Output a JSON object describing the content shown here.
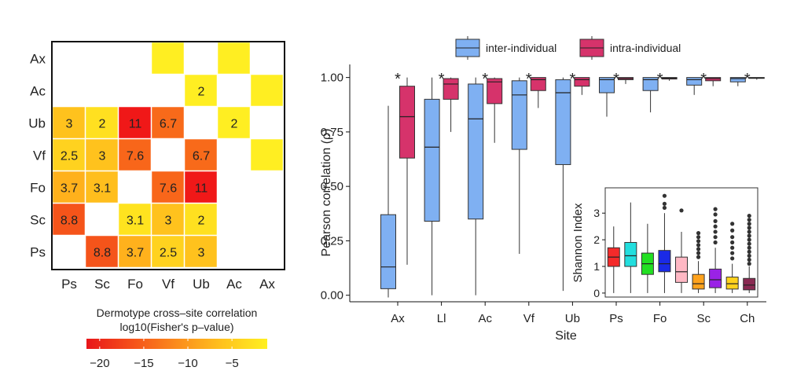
{
  "chart_data": [
    {
      "type": "heatmap",
      "rows": [
        "Ax",
        "Ac",
        "Ub",
        "Vf",
        "Fo",
        "Sc",
        "Ps"
      ],
      "columns": [
        "Ps",
        "Sc",
        "Fo",
        "Vf",
        "Ub",
        "Ac",
        "Ax"
      ],
      "cells": [
        {
          "row": "Ax",
          "col": "Vf",
          "value": null,
          "color": "#ffee22"
        },
        {
          "row": "Ax",
          "col": "Ac",
          "value": null,
          "color": "#ffee22"
        },
        {
          "row": "Ac",
          "col": "Ub",
          "value": "2",
          "color": "#ffee22"
        },
        {
          "row": "Ac",
          "col": "Ax",
          "value": null,
          "color": "#ffee22"
        },
        {
          "row": "Ub",
          "col": "Ps",
          "value": "3",
          "color": "#ffc21d"
        },
        {
          "row": "Ub",
          "col": "Sc",
          "value": "2",
          "color": "#ffe020"
        },
        {
          "row": "Ub",
          "col": "Fo",
          "value": "11",
          "color": "#f01818"
        },
        {
          "row": "Ub",
          "col": "Vf",
          "value": "6.7",
          "color": "#f86a1a"
        },
        {
          "row": "Ub",
          "col": "Ac",
          "value": "2",
          "color": "#ffee22"
        },
        {
          "row": "Vf",
          "col": "Ps",
          "value": "2.5",
          "color": "#ffd21f"
        },
        {
          "row": "Vf",
          "col": "Sc",
          "value": "3",
          "color": "#ffc21d"
        },
        {
          "row": "Vf",
          "col": "Fo",
          "value": "7.6",
          "color": "#f8661a"
        },
        {
          "row": "Vf",
          "col": "Ub",
          "value": "6.7",
          "color": "#f86a1a"
        },
        {
          "row": "Vf",
          "col": "Ax",
          "value": null,
          "color": "#ffee22"
        },
        {
          "row": "Fo",
          "col": "Ps",
          "value": "3.7",
          "color": "#ffb11c"
        },
        {
          "row": "Fo",
          "col": "Sc",
          "value": "3.1",
          "color": "#ffbe1d"
        },
        {
          "row": "Fo",
          "col": "Vf",
          "value": "7.6",
          "color": "#f8661a"
        },
        {
          "row": "Fo",
          "col": "Ub",
          "value": "11",
          "color": "#f01818"
        },
        {
          "row": "Sc",
          "col": "Ps",
          "value": "8.8",
          "color": "#f5541a"
        },
        {
          "row": "Sc",
          "col": "Fo",
          "value": "3.1",
          "color": "#ffe31f"
        },
        {
          "row": "Sc",
          "col": "Vf",
          "value": "3",
          "color": "#ffc21d"
        },
        {
          "row": "Sc",
          "col": "Ub",
          "value": "2",
          "color": "#ffe020"
        },
        {
          "row": "Ps",
          "col": "Sc",
          "value": "8.8",
          "color": "#f5541a"
        },
        {
          "row": "Ps",
          "col": "Fo",
          "value": "3.7",
          "color": "#ffb11c"
        },
        {
          "row": "Ps",
          "col": "Vf",
          "value": "2.5",
          "color": "#ffd21f"
        },
        {
          "row": "Ps",
          "col": "Ub",
          "value": "3",
          "color": "#ffc21d"
        }
      ],
      "colorbar": {
        "title_line1": "Dermotype cross–site correlation",
        "title_line2": "log10(Fisher's p–value)",
        "ticks": [
          "−20",
          "−15",
          "−10",
          "−5"
        ],
        "tick_values": [
          -20,
          -15,
          -10,
          -5
        ],
        "range": [
          -21.5,
          -1
        ],
        "colors": [
          "#e8161a",
          "#f5501a",
          "#fb8c1c",
          "#ffc21e",
          "#fff021"
        ]
      }
    },
    {
      "type": "box",
      "ylabel": "Pearson correlation (ρ)",
      "xlabel": "Site",
      "ylim": [
        -0.03,
        1.06
      ],
      "yticks": [
        "0.00",
        "0.25",
        "0.50",
        "0.75",
        "1.00"
      ],
      "ytick_values": [
        0,
        0.25,
        0.5,
        0.75,
        1.0
      ],
      "legend": {
        "position": "top",
        "entries": [
          {
            "name": "inter-individual",
            "color": "#7fb0f2"
          },
          {
            "name": "intra-individual",
            "color": "#d6336b"
          }
        ]
      },
      "significance_marker": "*",
      "categories": [
        "Ax",
        "Ll",
        "Ac",
        "Vf",
        "Ub",
        "Ps",
        "Fo",
        "Sc",
        "Ch"
      ],
      "series": [
        {
          "name": "inter-individual",
          "color": "#7fb0f2",
          "boxes": [
            {
              "min": -0.01,
              "q1": 0.03,
              "median": 0.13,
              "q3": 0.37,
              "max": 0.87
            },
            {
              "min": 0.0,
              "q1": 0.34,
              "median": 0.68,
              "q3": 0.9,
              "max": 1.0
            },
            {
              "min": 0.0,
              "q1": 0.35,
              "median": 0.81,
              "q3": 0.97,
              "max": 1.0
            },
            {
              "min": 0.19,
              "q1": 0.67,
              "median": 0.92,
              "q3": 0.985,
              "max": 1.0
            },
            {
              "min": 0.02,
              "q1": 0.6,
              "median": 0.93,
              "q3": 0.99,
              "max": 1.0
            },
            {
              "min": 0.82,
              "q1": 0.93,
              "median": 0.99,
              "q3": 1.0,
              "max": 1.0
            },
            {
              "min": 0.84,
              "q1": 0.94,
              "median": 0.99,
              "q3": 1.0,
              "max": 1.0
            },
            {
              "min": 0.92,
              "q1": 0.965,
              "median": 0.99,
              "q3": 1.0,
              "max": 1.0
            },
            {
              "min": 0.96,
              "q1": 0.98,
              "median": 0.995,
              "q3": 1.0,
              "max": 1.0
            }
          ]
        },
        {
          "name": "intra-individual",
          "color": "#d6336b",
          "boxes": [
            {
              "min": 0.14,
              "q1": 0.63,
              "median": 0.82,
              "q3": 0.96,
              "max": 1.0
            },
            {
              "min": 0.75,
              "q1": 0.9,
              "median": 0.97,
              "q3": 0.995,
              "max": 1.0
            },
            {
              "min": 0.7,
              "q1": 0.88,
              "median": 0.98,
              "q3": 0.995,
              "max": 1.0
            },
            {
              "min": 0.86,
              "q1": 0.94,
              "median": 0.99,
              "q3": 1.0,
              "max": 1.0
            },
            {
              "min": 0.92,
              "q1": 0.96,
              "median": 0.99,
              "q3": 1.0,
              "max": 1.0
            },
            {
              "min": 0.97,
              "q1": 0.99,
              "median": 0.995,
              "q3": 1.0,
              "max": 1.0
            },
            {
              "min": 0.985,
              "q1": 0.993,
              "median": 0.997,
              "q3": 1.0,
              "max": 1.0
            },
            {
              "min": 0.96,
              "q1": 0.985,
              "median": 0.995,
              "q3": 1.0,
              "max": 1.0
            },
            {
              "min": 0.99,
              "q1": 0.996,
              "median": 0.998,
              "q3": 1.0,
              "max": 1.0
            }
          ]
        }
      ]
    },
    {
      "type": "box",
      "inset": true,
      "ylabel": "Shannon Index",
      "ylim": [
        -0.15,
        3.95
      ],
      "yticks": [
        "0",
        "1",
        "2",
        "3"
      ],
      "ytick_values": [
        0,
        1,
        2,
        3
      ],
      "boxes": [
        {
          "color": "#f42a2a",
          "min": 0.0,
          "q1": 1.0,
          "median": 1.35,
          "q3": 1.7,
          "max": 2.5,
          "outliers": []
        },
        {
          "color": "#22dede",
          "min": 0.0,
          "q1": 1.0,
          "median": 1.4,
          "q3": 1.9,
          "max": 3.4,
          "outliers": []
        },
        {
          "color": "#22e022",
          "min": 0.0,
          "q1": 0.7,
          "median": 1.1,
          "q3": 1.5,
          "max": 2.6,
          "outliers": []
        },
        {
          "color": "#1a2ae6",
          "min": 0.0,
          "q1": 0.8,
          "median": 1.1,
          "q3": 1.6,
          "max": 3.0,
          "outliers": [
            3.2,
            3.35,
            3.65
          ]
        },
        {
          "color": "#ffb8c4",
          "min": 0.0,
          "q1": 0.4,
          "median": 0.8,
          "q3": 1.35,
          "max": 2.3,
          "outliers": [
            3.1
          ]
        },
        {
          "color": "#ffa21c",
          "min": 0.0,
          "q1": 0.15,
          "median": 0.35,
          "q3": 0.7,
          "max": 1.2,
          "outliers": [
            1.35,
            1.5,
            1.65,
            1.8,
            1.95,
            2.1,
            2.25
          ]
        },
        {
          "color": "#9a22e6",
          "min": 0.0,
          "q1": 0.2,
          "median": 0.5,
          "q3": 0.9,
          "max": 1.7,
          "outliers": [
            1.9,
            2.1,
            2.3,
            2.5,
            2.7,
            2.95,
            3.15
          ]
        },
        {
          "color": "#ffd21c",
          "min": 0.0,
          "q1": 0.15,
          "median": 0.35,
          "q3": 0.6,
          "max": 1.1,
          "outliers": [
            1.3,
            1.5,
            1.7,
            1.9,
            2.1,
            2.35,
            2.6
          ]
        },
        {
          "color": "#8a2a52",
          "min": 0.0,
          "q1": 0.12,
          "median": 0.3,
          "q3": 0.55,
          "max": 1.0,
          "outliers": [
            1.1,
            1.25,
            1.4,
            1.55,
            1.7,
            1.85,
            2.0,
            2.15,
            2.3,
            2.45,
            2.6,
            2.75,
            2.9
          ]
        }
      ]
    }
  ]
}
